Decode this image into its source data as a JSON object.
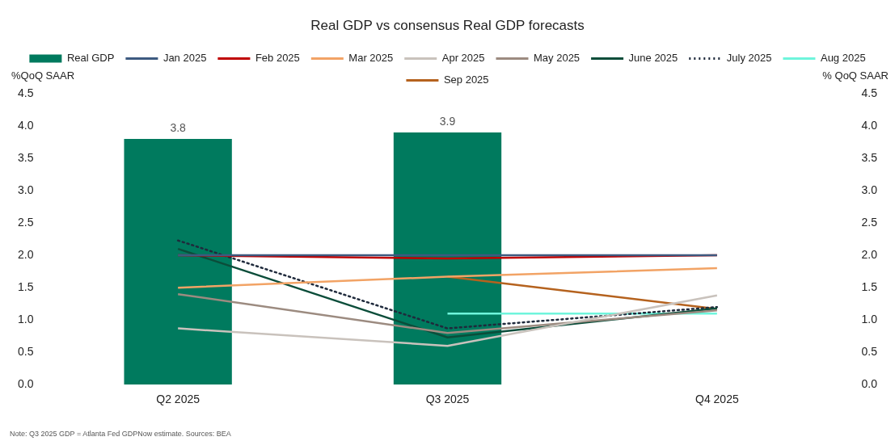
{
  "chart_data": {
    "type": "bar",
    "title": "Real GDP vs consensus Real GDP forecasts",
    "ylabel": "%QoQ SAAR",
    "y2label": "% QoQ SAAR",
    "categories": [
      "Q2 2025",
      "Q3 2025",
      "Q4 2025"
    ],
    "series": [
      {
        "name": "Real GDP",
        "color": "#007a5e",
        "values": [
          3.8,
          3.9,
          null
        ],
        "value_labels": [
          "3.8",
          "3.9",
          null
        ]
      },
      {
        "name": "Jan 2025",
        "type": "line",
        "color": "#3d5a80",
        "values": [
          2.0,
          2.0,
          2.0
        ]
      },
      {
        "name": "Feb 2025",
        "type": "line",
        "color": "#c00000",
        "values": [
          2.0,
          1.95,
          2.0
        ]
      },
      {
        "name": "Mar 2025",
        "type": "line",
        "color": "#f2a365",
        "values": [
          1.5,
          1.67,
          1.8
        ]
      },
      {
        "name": "Apr 2025",
        "type": "line",
        "color": "#c9c2bc",
        "values": [
          0.87,
          0.6,
          1.38
        ]
      },
      {
        "name": "May 2025",
        "type": "line",
        "color": "#9c8b80",
        "values": [
          1.4,
          0.8,
          1.15
        ]
      },
      {
        "name": "June 2025",
        "type": "line",
        "color": "#0b4d3a",
        "values": [
          2.1,
          0.73,
          1.18
        ]
      },
      {
        "name": "July 2025",
        "type": "line",
        "color": "#1f2a3c",
        "line_style": "dotted",
        "values": [
          2.23,
          0.87,
          1.2
        ]
      },
      {
        "name": "Aug 2025",
        "type": "line",
        "color": "#6ff5dc",
        "values": [
          null,
          1.1,
          1.1
        ]
      },
      {
        "name": "Sep 2025",
        "type": "line",
        "color": "#b5621e",
        "values": [
          null,
          1.67,
          1.17
        ]
      }
    ],
    "ylim": [
      0,
      4.5
    ],
    "yticks": [
      {
        "value": 0,
        "label": "0.0"
      },
      {
        "value": 0.5,
        "label": "0.5"
      },
      {
        "value": 1,
        "label": "1.0"
      },
      {
        "value": 1.5,
        "label": "1.5"
      },
      {
        "value": 2,
        "label": "2.0"
      },
      {
        "value": 2.5,
        "label": "2.5"
      },
      {
        "value": 3,
        "label": "3.0"
      },
      {
        "value": 3.5,
        "label": "3.5"
      },
      {
        "value": 4,
        "label": "4.0"
      },
      {
        "value": 4.5,
        "label": "4.5"
      }
    ],
    "y2lim": [
      0,
      4.5
    ],
    "y2ticks": [
      {
        "value": 0,
        "label": "0.0"
      },
      {
        "value": 0.5,
        "label": "0.5"
      },
      {
        "value": 1,
        "label": "1.0"
      },
      {
        "value": 1.5,
        "label": "1.5"
      },
      {
        "value": 2,
        "label": "2.0"
      },
      {
        "value": 2.5,
        "label": "2.5"
      },
      {
        "value": 3,
        "label": "3.0"
      },
      {
        "value": 3.5,
        "label": "3.5"
      },
      {
        "value": 4,
        "label": "4.0"
      },
      {
        "value": 4.5,
        "label": "4.5"
      }
    ],
    "grid": false,
    "legend": "top",
    "annotations": [
      "Note: Q3 2025 GDP = Atlanta Fed GDPNow estimate. Sources: BEA"
    ]
  }
}
